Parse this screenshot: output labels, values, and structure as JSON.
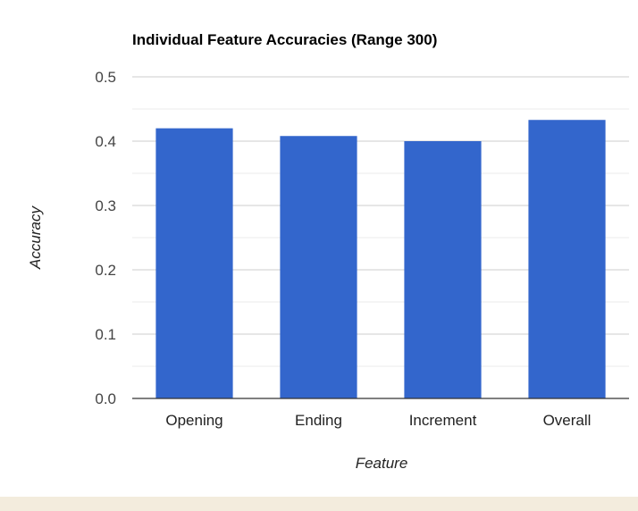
{
  "chart_data": {
    "type": "bar",
    "title": "Individual Feature Accuracies (Range 300)",
    "xlabel": "Feature",
    "ylabel": "Accuracy",
    "categories": [
      "Opening",
      "Ending",
      "Increment",
      "Overall"
    ],
    "values": [
      0.42,
      0.408,
      0.4,
      0.433
    ],
    "ylim": [
      0,
      0.5
    ],
    "yticks": [
      "0.0",
      "0.1",
      "0.2",
      "0.3",
      "0.4",
      "0.5"
    ],
    "grid": true,
    "legend": "none",
    "colors": {
      "bar": "#3366cc",
      "gridline": "#cccccc",
      "minor_gridline": "#ebebeb",
      "axis": "#333333",
      "text": "#222222",
      "footer": "#f3ecdd"
    }
  }
}
